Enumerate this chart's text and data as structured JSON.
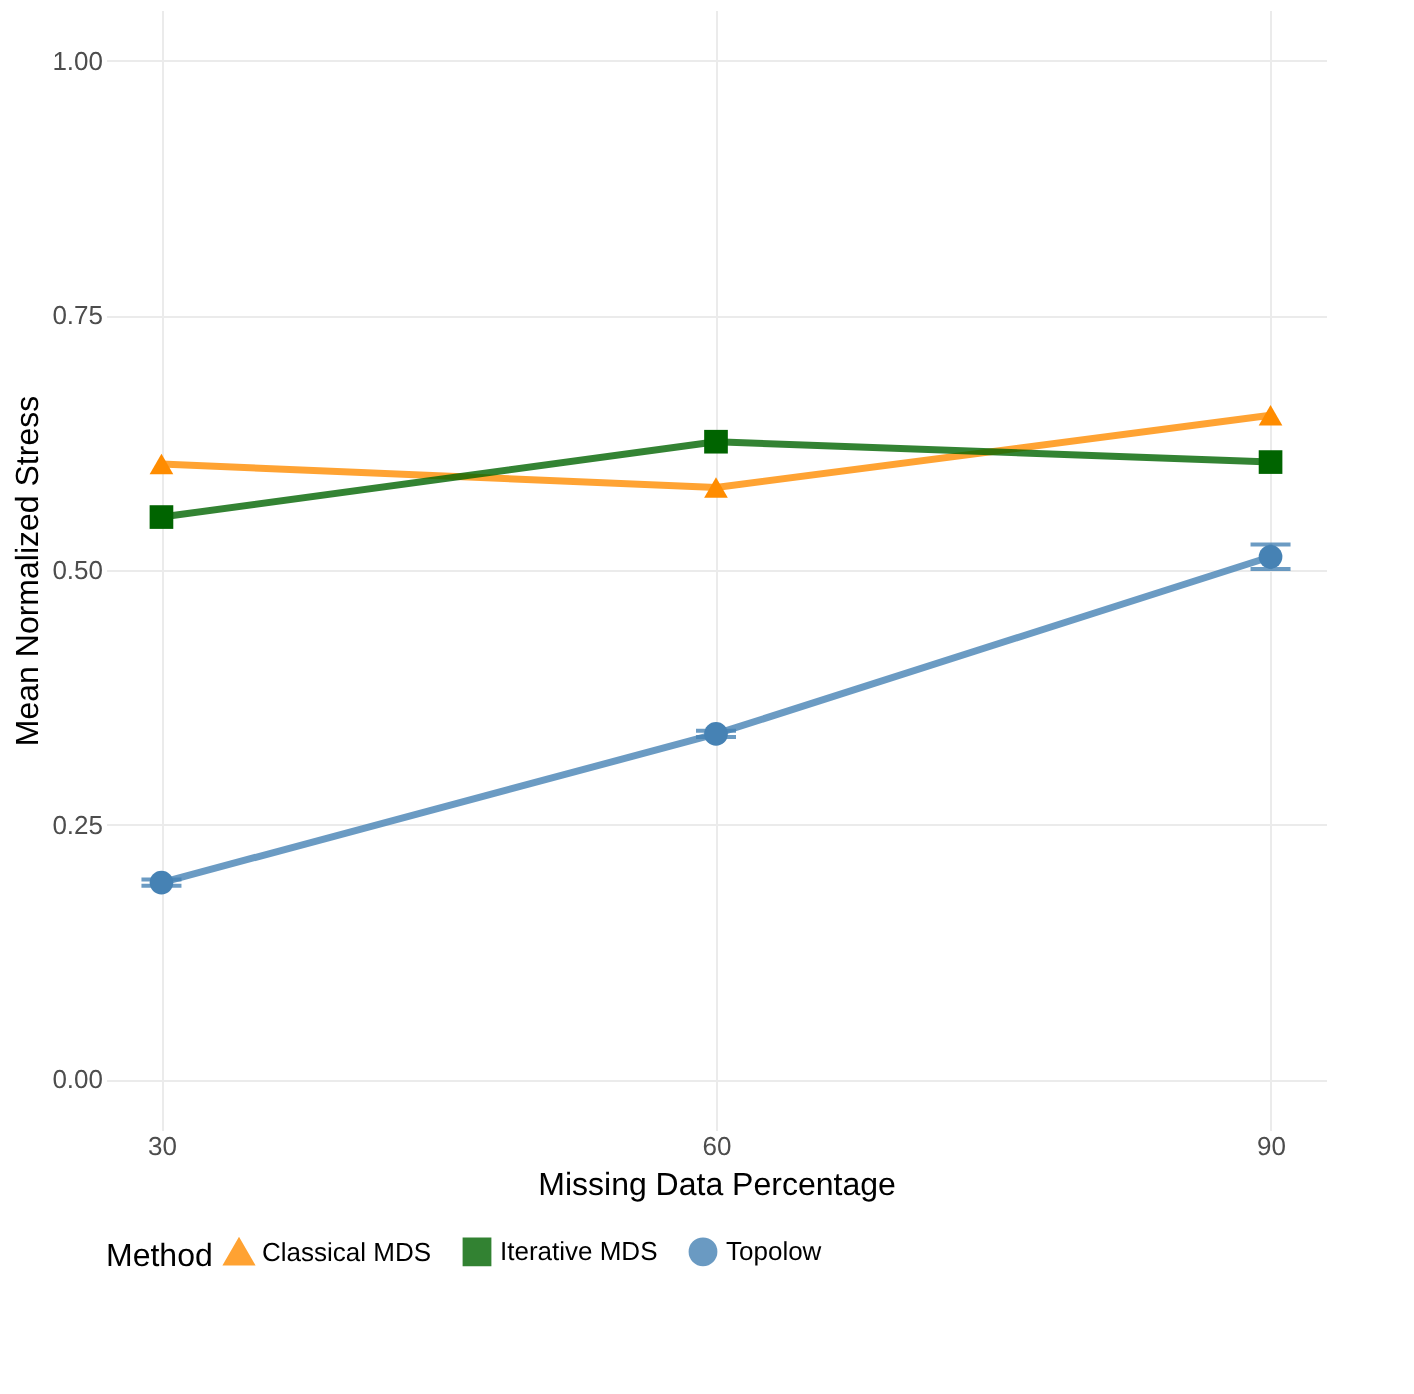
{
  "chart_data": {
    "type": "line",
    "xlabel": "Missing Data Percentage",
    "ylabel": "Mean Normalized Stress",
    "legend_title": "Method",
    "x": [
      30,
      60,
      90
    ],
    "series": [
      {
        "name": "Classical MDS",
        "color": "#ff8c00",
        "marker": "triangle",
        "values": [
          0.604,
          0.581,
          0.652
        ]
      },
      {
        "name": "Iterative MDS",
        "color": "#006400",
        "marker": "square",
        "values": [
          0.552,
          0.626,
          0.606
        ]
      },
      {
        "name": "Topolow",
        "color": "#4682b4",
        "marker": "circle",
        "values": [
          0.193,
          0.339,
          0.513
        ],
        "errors": [
          0.003,
          0.003,
          0.012
        ]
      }
    ],
    "xlim": [
      27,
      93
    ],
    "xticks": [
      30,
      60,
      90
    ],
    "ylim": [
      -0.05,
      1.05
    ],
    "yticks": [
      {
        "value": 0,
        "label": "0.00"
      },
      {
        "value": 0.25,
        "label": "0.25"
      },
      {
        "value": 0.5,
        "label": "0.50"
      },
      {
        "value": 0.75,
        "label": "0.75"
      },
      {
        "value": 1,
        "label": "1.00"
      }
    ],
    "grid": true,
    "legend": "bottom",
    "line_style": "solid"
  }
}
